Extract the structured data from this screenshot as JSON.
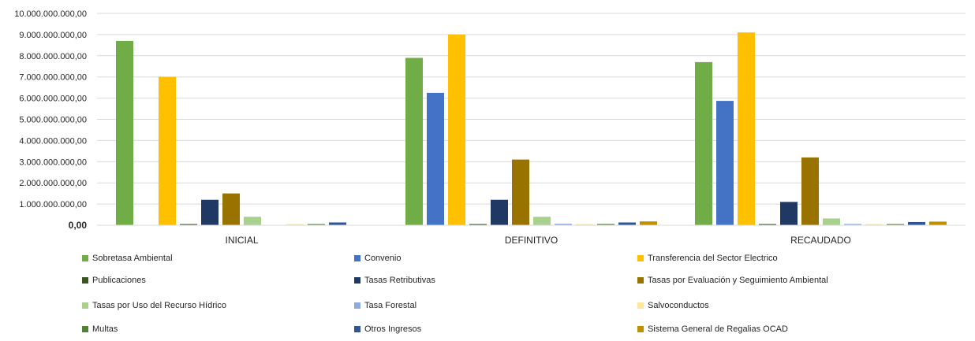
{
  "chart_data": {
    "type": "bar",
    "categories": [
      "INICIAL",
      "DEFINITIVO",
      "RECAUDADO"
    ],
    "ylim": [
      0,
      10000000000
    ],
    "y_ticks": [
      "0,00",
      "1.000.000.000,00",
      "2.000.000.000,00",
      "3.000.000.000,00",
      "4.000.000.000,00",
      "5.000.000.000,00",
      "6.000.000.000,00",
      "7.000.000.000,00",
      "8.000.000.000,00",
      "9.000.000.000,00",
      "10.000.000.000,00"
    ],
    "grid": true,
    "legend_position": "bottom",
    "series": [
      {
        "name": "Sobretasa Ambiental",
        "color": "#70AD47",
        "values": [
          8700000000,
          7900000000,
          7700000000
        ]
      },
      {
        "name": "Convenio",
        "color": "#4472C4",
        "values": [
          0,
          6250000000,
          5870000000
        ]
      },
      {
        "name": "Transferencia del Sector Electrico",
        "color": "#FFC000",
        "values": [
          7000000000,
          9000000000,
          9100000000
        ]
      },
      {
        "name": "Publicaciones",
        "color": "#375623",
        "values": [
          5000000,
          5000000,
          5000000
        ]
      },
      {
        "name": "Tasas Retributivas",
        "color": "#203864",
        "values": [
          1200000000,
          1200000000,
          1100000000
        ]
      },
      {
        "name": "Tasas por Evaluación y Seguimiento Ambiental",
        "color": "#997300",
        "values": [
          1500000000,
          3100000000,
          3200000000
        ]
      },
      {
        "name": "Tasas por Uso del Recurso Hídrico",
        "color": "#A9D18E",
        "values": [
          400000000,
          400000000,
          320000000
        ]
      },
      {
        "name": "Tasa Forestal",
        "color": "#8FAADC",
        "values": [
          0,
          70000000,
          60000000
        ]
      },
      {
        "name": "Salvoconductos",
        "color": "#FFE699",
        "values": [
          5000000,
          30000000,
          25000000
        ]
      },
      {
        "name": "Multas",
        "color": "#548235",
        "values": [
          50000000,
          60000000,
          50000000
        ]
      },
      {
        "name": "Otros Ingresos",
        "color": "#2F5597",
        "values": [
          130000000,
          130000000,
          150000000
        ]
      },
      {
        "name": "Sistema General de Regalias OCAD",
        "color": "#BF9000",
        "values": [
          0,
          180000000,
          170000000
        ]
      }
    ]
  }
}
